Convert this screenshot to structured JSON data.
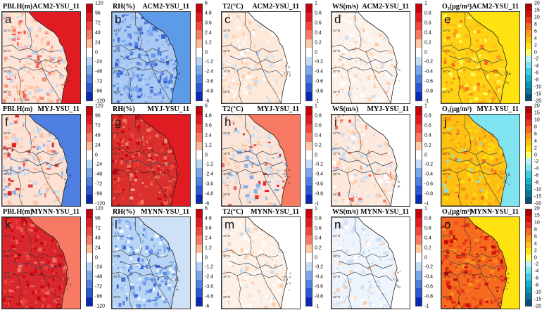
{
  "rows": [
    {
      "panels": [
        {
          "letter": "a",
          "var": "PBLH(m)",
          "exp": "ACM2-YSU_11",
          "field": "pblh_acm2",
          "colorbar": "pblh"
        },
        {
          "letter": "b",
          "var": "RH(%)",
          "exp": "ACM2-YSU_11",
          "field": "rh_acm2",
          "colorbar": "rh"
        },
        {
          "letter": "c",
          "var": "T2(°C)",
          "exp": "ACM2-YSU_11",
          "field": "t2_acm2",
          "colorbar": "unit"
        },
        {
          "letter": "d",
          "var": "WS(m/s)",
          "exp": "ACM2-YSU_11",
          "field": "ws_acm2",
          "colorbar": "unit"
        },
        {
          "letter": "e",
          "var": "O₃(μg/m³)",
          "exp": "ACM2-YSU_11",
          "field": "o3_acm2",
          "colorbar": "o3"
        }
      ]
    },
    {
      "panels": [
        {
          "letter": "f",
          "var": "PBLH(m)",
          "exp": "MYJ-YSU_11",
          "field": "pblh_myj",
          "colorbar": "pblh"
        },
        {
          "letter": "g",
          "var": "RH(%)",
          "exp": "MYJ-YSU_11",
          "field": "rh_myj",
          "colorbar": "rh"
        },
        {
          "letter": "h",
          "var": "T2(°C)",
          "exp": "MYJ-YSU_11",
          "field": "t2_myj",
          "colorbar": "unit"
        },
        {
          "letter": "i",
          "var": "WS(m/s)",
          "exp": "MYJ-YSU_11",
          "field": "ws_myj",
          "colorbar": "unit"
        },
        {
          "letter": "j",
          "var": "O₃(μg/m³)",
          "exp": "MYJ-YSU_11",
          "field": "o3_myj",
          "colorbar": "o3"
        }
      ]
    },
    {
      "panels": [
        {
          "letter": "k",
          "var": "PBLH(m)",
          "exp": "MYNN-YSU_11",
          "field": "pblh_mynn",
          "colorbar": "pblh"
        },
        {
          "letter": "l",
          "var": "RH(%)",
          "exp": "MYNN-YSU_11",
          "field": "rh_mynn",
          "colorbar": "rh"
        },
        {
          "letter": "m",
          "var": "T2(°C)",
          "exp": "MYNN-YSU_11",
          "field": "t2_mynn",
          "colorbar": "unit"
        },
        {
          "letter": "n",
          "var": "WS(m/s)",
          "exp": "MYNN-YSU_11",
          "field": "ws_mynn",
          "colorbar": "unit"
        },
        {
          "letter": "o",
          "var": "O₃(μg/m³)",
          "exp": "MYNN-YSU_11",
          "field": "o3_mynn",
          "colorbar": "o3"
        }
      ]
    }
  ],
  "colorbars": {
    "pblh": {
      "ticks": [
        "120",
        "96",
        "72",
        "48",
        "24",
        "0",
        "-24",
        "-48",
        "-72",
        "-96",
        "-120"
      ],
      "colors": [
        "#c8000c",
        "#e01b22",
        "#f0463c",
        "#f87a64",
        "#fdb99a",
        "#ffffff",
        "#b8d4f5",
        "#7aa8ec",
        "#4f7fe0",
        "#2a58d2",
        "#0a28b8"
      ]
    },
    "rh": {
      "ticks": [
        "6",
        "4.8",
        "3.6",
        "2.4",
        "1.2",
        "0",
        "-1.2",
        "-2.4",
        "-3.6",
        "-4.8",
        "-6"
      ],
      "colors": [
        "#c8000c",
        "#e01b22",
        "#f0463c",
        "#f87a64",
        "#fdb99a",
        "#ffffff",
        "#b8d4f5",
        "#7aa8ec",
        "#4f7fe0",
        "#2a58d2",
        "#0a28b8"
      ]
    },
    "unit": {
      "ticks": [
        "1",
        "0.8",
        "0.6",
        "0.4",
        "0.2",
        "0",
        "-0.2",
        "-0.4",
        "-0.6",
        "-0.8",
        "-1"
      ],
      "colors": [
        "#c8000c",
        "#e01b22",
        "#f0463c",
        "#f87a64",
        "#fdcaa5",
        "#ffffff",
        "#c5dbf5",
        "#7aa8ec",
        "#4f7fe0",
        "#2a58d2",
        "#0a28b8"
      ]
    },
    "o3": {
      "ticks": [
        "20",
        "15",
        "10",
        "8",
        "6",
        "4",
        "2",
        "0",
        "-2",
        "-4",
        "-6",
        "-8",
        "-10",
        "-15",
        "-20"
      ],
      "colors": [
        "#b40000",
        "#d40d0d",
        "#e8351d",
        "#f56a1e",
        "#fb9a1a",
        "#fdc113",
        "#ffe310",
        "#ffff66",
        "#bff2f7",
        "#7fe3f0",
        "#40cde0",
        "#12b4cf",
        "#0a94b4",
        "#087896",
        "#064f7a"
      ]
    }
  },
  "axes": {
    "lat_labels": [
      "34°N",
      "32°N",
      "30°N",
      "28°N"
    ],
    "lon_labels": [
      "116°E",
      "118°E",
      "120°E",
      "122°E"
    ]
  }
}
